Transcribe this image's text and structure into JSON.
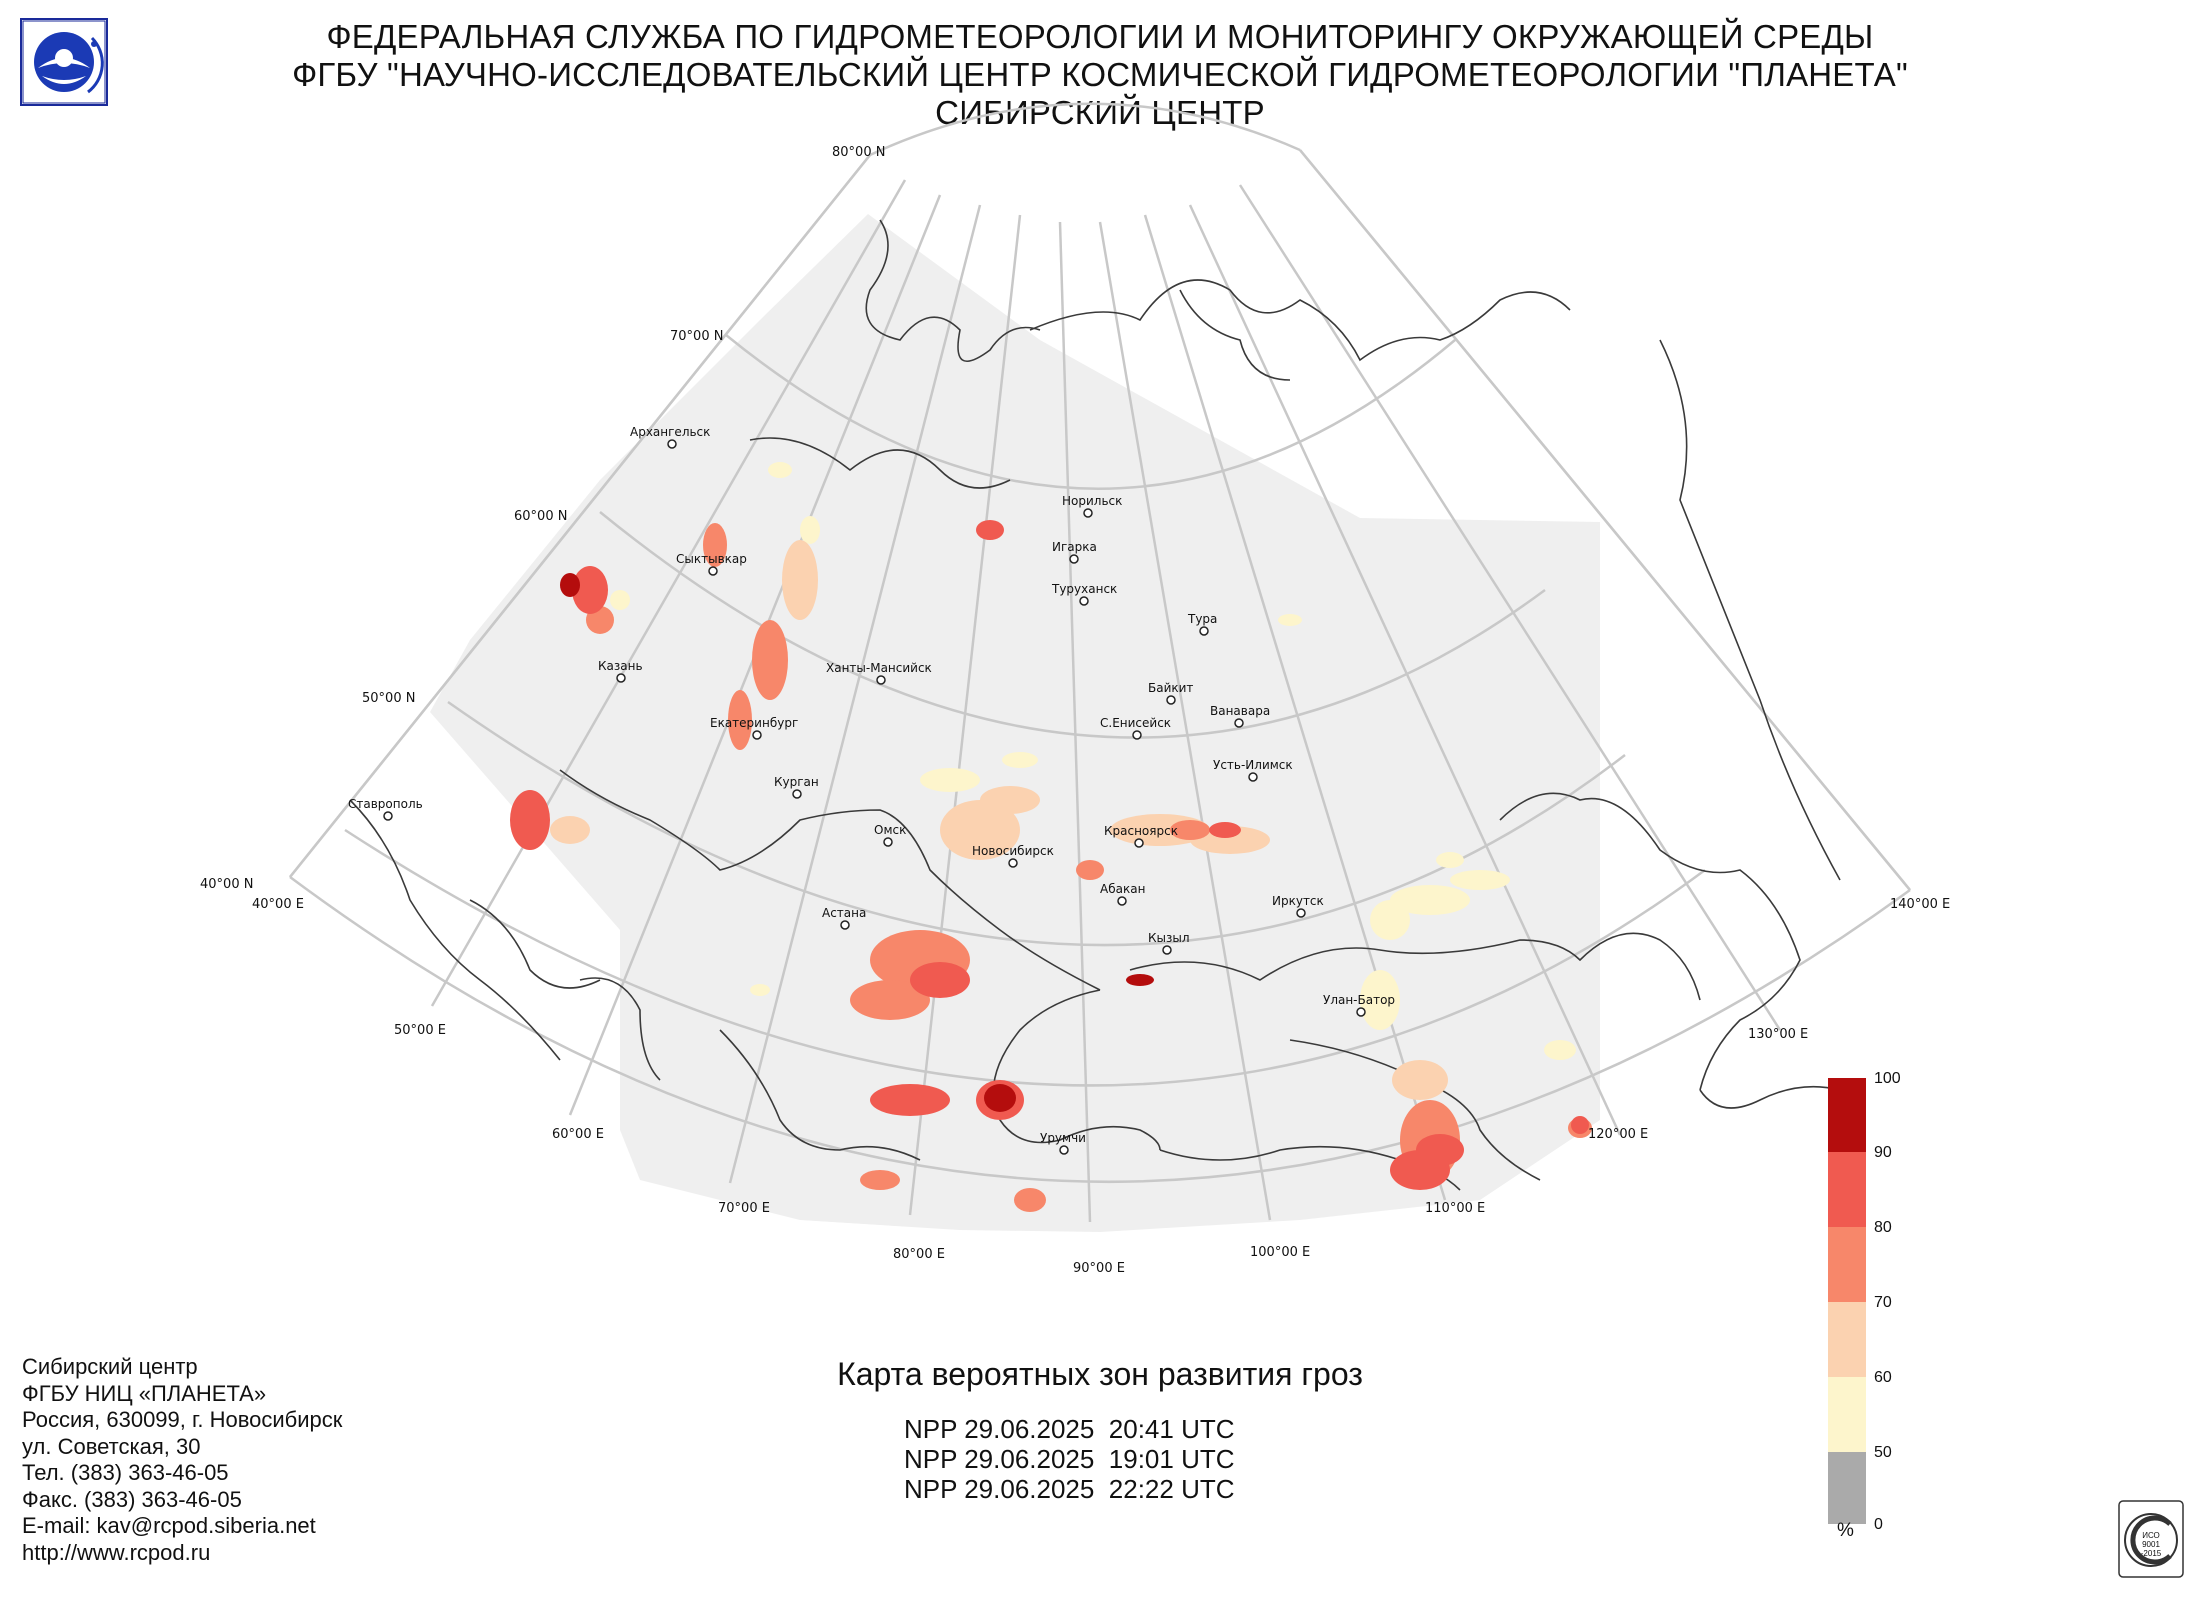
{
  "header": {
    "lines": [
      "ФЕДЕРАЛЬНАЯ СЛУЖБА ПО ГИДРОМЕТЕОРОЛОГИИ И МОНИТОРИНГУ ОКРУЖАЮЩЕЙ СРЕДЫ",
      "ФГБУ \"НАУЧНО-ИССЛЕДОВАТЕЛЬСКИЙ ЦЕНТР КОСМИЧЕСКОЙ ГИДРОМЕТЕОРОЛОГИИ \"ПЛАНЕТА\"",
      "СИБИРСКИЙ ЦЕНТР"
    ]
  },
  "map": {
    "latitude_labels": [
      "80°00 N",
      "70°00 N",
      "60°00 N",
      "50°00 N",
      "40°00 N"
    ],
    "longitude_labels": [
      "40°00 E",
      "50°00 E",
      "60°00 E",
      "70°00 E",
      "80°00 E",
      "90°00 E",
      "100°00 E",
      "110°00 E",
      "120°00 E",
      "130°00 E",
      "140°00 E"
    ],
    "cities": [
      "Архангельск",
      "Норильск",
      "Игарка",
      "Сыктывкар",
      "Туруханск",
      "Тура",
      "Казань",
      "Ханты-Мансийск",
      "Байкит",
      "Ванавара",
      "Екатеринбург",
      "С.Енисейск",
      "Усть-Илимск",
      "Курган",
      "Ставрополь",
      "Омск",
      "Красноярск",
      "Новосибирск",
      "Абакан",
      "Иркутск",
      "Астана",
      "Кызыл",
      "Улан-Батор",
      "Урумчи"
    ]
  },
  "map_title": "Карта вероятных зон развития гроз",
  "passes": [
    "NPP 29.06.2025  20:41 UTC",
    "NPP 29.06.2025  19:01 UTC",
    "NPP 29.06.2025  22:22 UTC"
  ],
  "legend": {
    "ticks": [
      "100",
      "90",
      "80",
      "70",
      "60",
      "50",
      "0"
    ],
    "unit": "%",
    "colors": [
      "#b40d0d",
      "#f05a50",
      "#f7876a",
      "#fbd2b0",
      "#fdf5cc",
      "#aaaaaa"
    ]
  },
  "contact": {
    "lines": [
      "Сибирский центр",
      "ФГБУ НИЦ «ПЛАНЕТА»",
      "Россия, 630099, г. Новосибирск",
      "ул. Советская, 30",
      "Тел. (383) 363-46-05",
      "Факс. (383) 363-46-05",
      "E-mail: kav@rcpod.siberia.net",
      "http://www.rcpod.ru"
    ]
  },
  "iso_stamp": {
    "lines": [
      "ИСО",
      "9001",
      "-2015"
    ]
  }
}
